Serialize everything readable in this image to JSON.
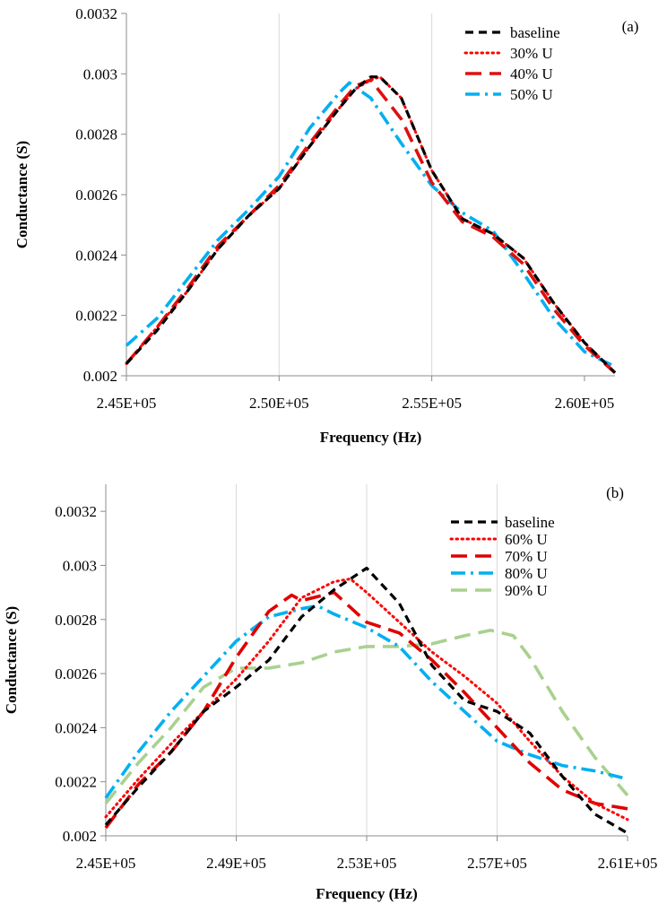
{
  "chart_data": [
    {
      "type": "line",
      "panel_label": "(a)",
      "xlabel": "Frequency (Hz)",
      "ylabel": "Conductance (S)",
      "xlim": [
        245000,
        261000
      ],
      "ylim": [
        0.002,
        0.0032
      ],
      "x_ticks": [
        245000,
        250000,
        255000,
        260000
      ],
      "x_tick_labels": [
        "2.45E+05",
        "2.50E+05",
        "2.55E+05",
        "2.60E+05"
      ],
      "y_ticks": [
        0.002,
        0.0022,
        0.0024,
        0.0026,
        0.0028,
        0.003,
        0.0032
      ],
      "y_tick_labels": [
        "0.002",
        "0.0022",
        "0.0024",
        "0.0026",
        "0.0028",
        "0.003",
        "0.0032"
      ],
      "grid": "vertical",
      "legend_position": "top-right",
      "series": [
        {
          "name": "baseline",
          "color": "#000000",
          "style": "dash",
          "x": [
            245000,
            246000,
            247000,
            248000,
            249000,
            250000,
            251000,
            252000,
            252500,
            253000,
            253300,
            254000,
            255000,
            256000,
            257000,
            258000,
            259000,
            260000,
            261000
          ],
          "y": [
            0.00204,
            0.00215,
            0.00228,
            0.00242,
            0.00253,
            0.00262,
            0.00276,
            0.00289,
            0.00295,
            0.00299,
            0.00299,
            0.00292,
            0.00268,
            0.00252,
            0.00247,
            0.00239,
            0.00224,
            0.00211,
            0.00201
          ]
        },
        {
          "name": "30% U",
          "color": "#ff0000",
          "style": "dot",
          "x": [
            245000,
            246000,
            247000,
            248000,
            249000,
            250000,
            251000,
            252000,
            252500,
            253000,
            253300,
            254000,
            255000,
            256000,
            257000,
            258000,
            259000,
            260000,
            261000
          ],
          "y": [
            0.00204,
            0.00216,
            0.00228,
            0.00242,
            0.00253,
            0.00262,
            0.00276,
            0.00289,
            0.00295,
            0.00298,
            0.00299,
            0.00292,
            0.00268,
            0.00252,
            0.00247,
            0.00239,
            0.00224,
            0.00211,
            0.00201
          ]
        },
        {
          "name": "40% U",
          "color": "#dd1111",
          "style": "longdash",
          "x": [
            245000,
            246000,
            247000,
            248000,
            249000,
            250000,
            251000,
            252000,
            252500,
            253000,
            254000,
            255000,
            256000,
            257000,
            258000,
            259000,
            260000,
            261000
          ],
          "y": [
            0.00204,
            0.00216,
            0.00229,
            0.00243,
            0.00253,
            0.00263,
            0.00277,
            0.0029,
            0.00296,
            0.00298,
            0.00285,
            0.00264,
            0.00251,
            0.00246,
            0.00237,
            0.00222,
            0.0021,
            0.00201
          ]
        },
        {
          "name": "50% U",
          "color": "#00b0f0",
          "style": "dashdot",
          "x": [
            245000,
            246000,
            247000,
            248000,
            249000,
            250000,
            251000,
            252000,
            252300,
            253000,
            254000,
            255000,
            256000,
            257000,
            258000,
            259000,
            260000,
            261000
          ],
          "y": [
            0.0021,
            0.00219,
            0.00232,
            0.00245,
            0.00255,
            0.00266,
            0.00282,
            0.00294,
            0.00297,
            0.00292,
            0.00277,
            0.00263,
            0.00254,
            0.00248,
            0.00234,
            0.00219,
            0.00208,
            0.00203
          ]
        }
      ]
    },
    {
      "type": "line",
      "panel_label": "(b)",
      "xlabel": "Frequency (Hz)",
      "ylabel": "Conductance (S)",
      "xlim": [
        245000,
        261000
      ],
      "ylim": [
        0.002,
        0.0033
      ],
      "x_ticks": [
        245000,
        249000,
        253000,
        257000,
        261000
      ],
      "x_tick_labels": [
        "2.45E+05",
        "2.49E+05",
        "2.53E+05",
        "2.57E+05",
        "2.61E+05"
      ],
      "y_ticks": [
        0.002,
        0.0022,
        0.0024,
        0.0026,
        0.0028,
        0.003,
        0.0032
      ],
      "y_tick_labels": [
        "0.002",
        "0.0022",
        "0.0024",
        "0.0026",
        "0.0028",
        "0.003",
        "0.0032"
      ],
      "grid": "vertical",
      "legend_position": "top-right",
      "series": [
        {
          "name": "baseline",
          "color": "#000000",
          "style": "dash",
          "x": [
            245000,
            246000,
            247000,
            248000,
            249000,
            250000,
            251000,
            252000,
            253000,
            254000,
            255000,
            256000,
            257000,
            258000,
            259000,
            260000,
            261000
          ],
          "y": [
            0.00204,
            0.00218,
            0.00231,
            0.00246,
            0.00255,
            0.00265,
            0.00281,
            0.00291,
            0.00299,
            0.00286,
            0.00263,
            0.0025,
            0.00246,
            0.00238,
            0.00222,
            0.00208,
            0.00201
          ]
        },
        {
          "name": "60% U",
          "color": "#ff0000",
          "style": "dot",
          "x": [
            245000,
            246000,
            247000,
            248000,
            249000,
            250000,
            251000,
            252000,
            252500,
            253000,
            254000,
            255000,
            256000,
            257000,
            258000,
            259000,
            260000,
            261000
          ],
          "y": [
            0.00207,
            0.00221,
            0.00234,
            0.00246,
            0.00258,
            0.00272,
            0.00288,
            0.00294,
            0.00295,
            0.0029,
            0.00279,
            0.00268,
            0.00259,
            0.00249,
            0.00235,
            0.00222,
            0.00212,
            0.00206
          ]
        },
        {
          "name": "70% U",
          "color": "#e00000",
          "style": "longdash",
          "x": [
            245000,
            246000,
            247000,
            248000,
            249000,
            250000,
            250700,
            251000,
            252000,
            253000,
            254000,
            255000,
            256000,
            257000,
            258000,
            259000,
            260000,
            261000
          ],
          "y": [
            0.00203,
            0.00219,
            0.00231,
            0.00246,
            0.00266,
            0.00283,
            0.00289,
            0.00287,
            0.0029,
            0.00279,
            0.00275,
            0.00265,
            0.00253,
            0.0024,
            0.00227,
            0.00217,
            0.00212,
            0.0021
          ]
        },
        {
          "name": "80% U",
          "color": "#00b0f0",
          "style": "dashdot",
          "x": [
            245000,
            246000,
            247000,
            248000,
            249000,
            250000,
            251000,
            251500,
            252000,
            253000,
            254000,
            255000,
            256000,
            257000,
            258000,
            259000,
            260000,
            261000
          ],
          "y": [
            0.00214,
            0.00231,
            0.00246,
            0.00259,
            0.00272,
            0.00281,
            0.00284,
            0.00285,
            0.00282,
            0.00277,
            0.0027,
            0.00257,
            0.00246,
            0.00235,
            0.0023,
            0.00226,
            0.00224,
            0.00221
          ]
        },
        {
          "name": "90% U",
          "color": "#a9d18e",
          "style": "longdash",
          "x": [
            245000,
            246000,
            247000,
            248000,
            249000,
            250000,
            251000,
            252000,
            253000,
            254000,
            255000,
            256000,
            256800,
            257500,
            258000,
            259000,
            260000,
            261000
          ],
          "y": [
            0.00212,
            0.00227,
            0.0024,
            0.00255,
            0.00262,
            0.00262,
            0.00264,
            0.00268,
            0.0027,
            0.0027,
            0.00271,
            0.00274,
            0.00276,
            0.00274,
            0.00266,
            0.00246,
            0.00229,
            0.00215
          ]
        }
      ]
    }
  ]
}
